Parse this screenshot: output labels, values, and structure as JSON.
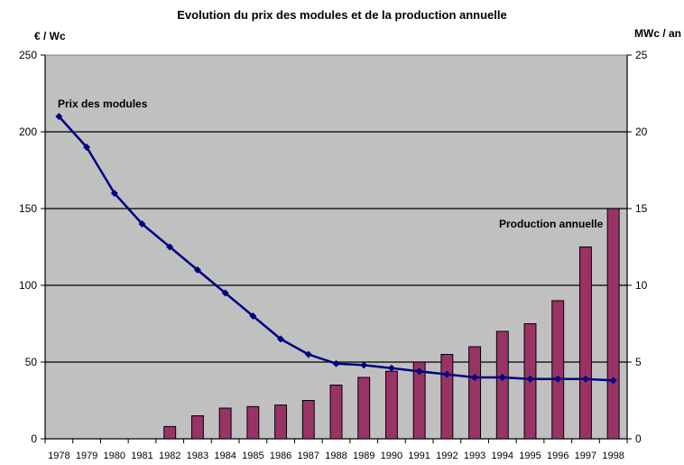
{
  "chart_data": {
    "type": "bar+line",
    "title": "Evolution du prix des modules et de la production annuelle",
    "y_left_label": "€ / Wc",
    "y_right_label": "MWc / an",
    "y_left_lim": [
      0,
      250
    ],
    "y_right_lim": [
      0,
      25
    ],
    "y_left_ticks": [
      0,
      50,
      100,
      150,
      200,
      250
    ],
    "y_right_ticks": [
      0,
      5,
      10,
      15,
      20,
      25
    ],
    "categories": [
      "1978",
      "1979",
      "1980",
      "1981",
      "1982",
      "1983",
      "1984",
      "1985",
      "1986",
      "1987",
      "1988",
      "1989",
      "1990",
      "1991",
      "1992",
      "1993",
      "1994",
      "1995",
      "1996",
      "1997",
      "1998"
    ],
    "grid": true,
    "plot_background": "#c0c0c0",
    "series": [
      {
        "name": "Production annuelle",
        "type": "bar",
        "axis": "right",
        "color": "#993366",
        "values": [
          0,
          0,
          0,
          0,
          0.8,
          1.5,
          2.0,
          2.1,
          2.2,
          2.5,
          3.5,
          4.0,
          4.4,
          5.0,
          5.5,
          6.0,
          7.0,
          7.5,
          9.0,
          12.5,
          15.0
        ]
      },
      {
        "name": "Prix des modules",
        "type": "line",
        "axis": "left",
        "color": "#000080",
        "values": [
          210,
          190,
          160,
          140,
          125,
          110,
          95,
          80,
          65,
          55,
          49,
          48,
          46,
          44,
          42,
          40,
          40,
          39,
          39,
          39,
          38
        ]
      }
    ]
  }
}
